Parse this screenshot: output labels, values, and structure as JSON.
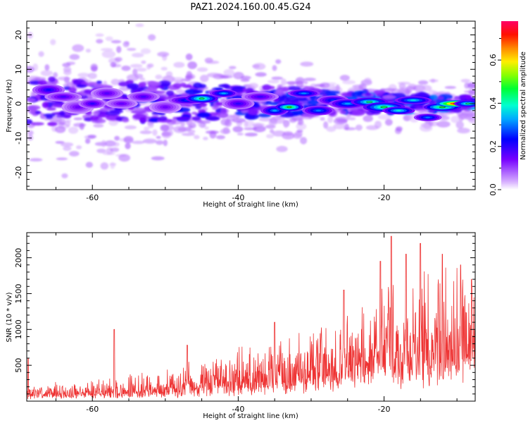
{
  "figure": {
    "title": "PAZ1.2024.160.00.45.G24"
  },
  "chart_data": [
    {
      "type": "heatmap",
      "panel": "spectrogram",
      "xlabel": "Height of straight line (km)",
      "ylabel": "Frequency (Hz)",
      "xlim": [
        -69,
        -7.5
      ],
      "ylim": [
        -25,
        24
      ],
      "xticks": [
        -60,
        -40,
        -20
      ],
      "yticks": [
        -20,
        -10,
        0,
        10,
        20
      ],
      "colorbar": {
        "label": "Normalized spectral amplitude",
        "range": [
          0,
          0.78
        ],
        "ticks": [
          "0.0",
          "0.2",
          "0.4",
          "0.6"
        ],
        "tick_values": [
          0,
          0.2,
          0.4,
          0.6
        ],
        "colormap": "gist_rainbow_r"
      },
      "blobs": [
        {
          "x": -66,
          "y": 4,
          "w": 1.4,
          "h": 1.2,
          "v": 0.22
        },
        {
          "x": -64,
          "y": 2,
          "w": 1.6,
          "h": 1.0,
          "v": 0.18
        },
        {
          "x": -62,
          "y": -1,
          "w": 1.4,
          "h": 1.4,
          "v": 0.15
        },
        {
          "x": -60,
          "y": 0,
          "w": 1.2,
          "h": 1.0,
          "v": 0.2
        },
        {
          "x": -58,
          "y": 3,
          "w": 1.4,
          "h": 1.2,
          "v": 0.17
        },
        {
          "x": -56,
          "y": 0,
          "w": 1.4,
          "h": 1.0,
          "v": 0.16
        },
        {
          "x": -53,
          "y": 2,
          "w": 1.4,
          "h": 1.1,
          "v": 0.18
        },
        {
          "x": -50,
          "y": -1,
          "w": 1.4,
          "h": 1.3,
          "v": 0.15
        },
        {
          "x": -47,
          "y": 1,
          "w": 1.6,
          "h": 0.9,
          "v": 0.26
        },
        {
          "x": -45,
          "y": 1.5,
          "w": 1.4,
          "h": 0.9,
          "v": 0.44
        },
        {
          "x": -42,
          "y": 3,
          "w": 1.2,
          "h": 0.8,
          "v": 0.33
        },
        {
          "x": -40,
          "y": 0,
          "w": 1.4,
          "h": 1.2,
          "v": 0.2
        },
        {
          "x": -37,
          "y": 2,
          "w": 1.6,
          "h": 1.0,
          "v": 0.19
        },
        {
          "x": -35,
          "y": -2,
          "w": 1.2,
          "h": 1.0,
          "v": 0.32
        },
        {
          "x": -33,
          "y": -1,
          "w": 1.2,
          "h": 0.8,
          "v": 0.5
        },
        {
          "x": -31,
          "y": 3,
          "w": 1.4,
          "h": 0.8,
          "v": 0.31
        },
        {
          "x": -29,
          "y": -2,
          "w": 1.4,
          "h": 1.0,
          "v": 0.3
        },
        {
          "x": -27,
          "y": 1,
          "w": 1.4,
          "h": 1.0,
          "v": 0.26
        },
        {
          "x": -25,
          "y": 0,
          "w": 1.6,
          "h": 1.0,
          "v": 0.32
        },
        {
          "x": -22,
          "y": 0.5,
          "w": 1.6,
          "h": 0.9,
          "v": 0.42
        },
        {
          "x": -20,
          "y": -1,
          "w": 1.8,
          "h": 1.0,
          "v": 0.45
        },
        {
          "x": -18,
          "y": -2,
          "w": 1.4,
          "h": 0.8,
          "v": 0.38
        },
        {
          "x": -16,
          "y": 1,
          "w": 1.6,
          "h": 0.8,
          "v": 0.36
        },
        {
          "x": -14,
          "y": -4,
          "w": 1.2,
          "h": 0.8,
          "v": 0.3
        },
        {
          "x": -12,
          "y": -1,
          "w": 1.6,
          "h": 0.8,
          "v": 0.48
        },
        {
          "x": -10,
          "y": 0,
          "w": 1.8,
          "h": 0.7,
          "v": 0.78
        },
        {
          "x": -8.5,
          "y": 0,
          "w": 1.2,
          "h": 0.7,
          "v": 0.42
        }
      ]
    },
    {
      "type": "line",
      "panel": "snr",
      "xlabel": "Height of straight line (km)",
      "ylabel": "SNR (10 * v/v)",
      "xlim": [
        -69,
        -7.5
      ],
      "ylim": [
        0,
        2350
      ],
      "xticks": [
        -60,
        -40,
        -20
      ],
      "yticks": [
        500,
        1000,
        1500,
        2000
      ],
      "color": "#ee3333",
      "envelope": {
        "x": [
          -69,
          -64,
          -60,
          -56,
          -52,
          -48,
          -44,
          -40,
          -36,
          -32,
          -28,
          -26,
          -24,
          -22,
          -20,
          -18,
          -16,
          -14,
          -12,
          -10,
          -8,
          -7.5
        ],
        "y": [
          130,
          150,
          170,
          200,
          230,
          280,
          360,
          420,
          500,
          580,
          650,
          720,
          780,
          850,
          950,
          1000,
          1050,
          1050,
          1100,
          1150,
          1250,
          1250
        ]
      },
      "spikes": [
        {
          "x": -68.8,
          "y": 600
        },
        {
          "x": -57,
          "y": 1000
        },
        {
          "x": -47,
          "y": 780
        },
        {
          "x": -35,
          "y": 1100
        },
        {
          "x": -25.5,
          "y": 1550
        },
        {
          "x": -20.5,
          "y": 1950
        },
        {
          "x": -19,
          "y": 2300
        },
        {
          "x": -17,
          "y": 2050
        },
        {
          "x": -15,
          "y": 2200
        },
        {
          "x": -12,
          "y": 2050
        },
        {
          "x": -9.5,
          "y": 1900
        },
        {
          "x": -8,
          "y": 1700
        }
      ]
    }
  ]
}
